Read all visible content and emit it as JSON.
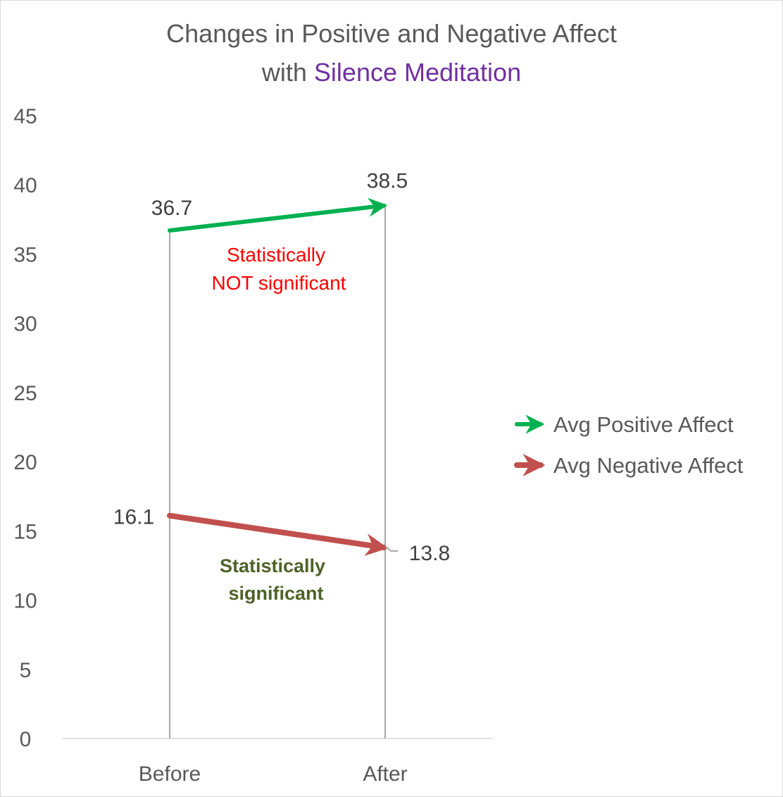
{
  "chart_data": {
    "type": "line",
    "title": {
      "part1": "Changes in Positive and Negative Affect",
      "part2": "with ",
      "highlight": "Silence Meditation"
    },
    "categories": [
      "Before",
      "After"
    ],
    "ylim": [
      0,
      45
    ],
    "yticks": [
      "0",
      "5",
      "10",
      "15",
      "20",
      "25",
      "30",
      "35",
      "40",
      "45"
    ],
    "grid": false,
    "legend_position": "right",
    "series": [
      {
        "name": "Avg Positive Affect",
        "values": [
          36.7,
          38.5
        ],
        "labels": [
          "36.7",
          "38.5"
        ],
        "color": "#00B050"
      },
      {
        "name": "Avg Negative Affect",
        "values": [
          16.1,
          13.8
        ],
        "labels": [
          "16.1",
          "13.8"
        ],
        "color": "#C0504D"
      }
    ],
    "annotations": [
      {
        "lines": [
          "Statistically",
          "NOT significant"
        ],
        "color": "#FF0000"
      },
      {
        "lines": [
          "Statistically",
          "significant"
        ],
        "color": "#4F6228"
      }
    ],
    "colors": {
      "text": "#595959",
      "title_highlight": "#7030A0",
      "droplines": "#A6A6A6",
      "axis": "#D9D9D9"
    }
  }
}
